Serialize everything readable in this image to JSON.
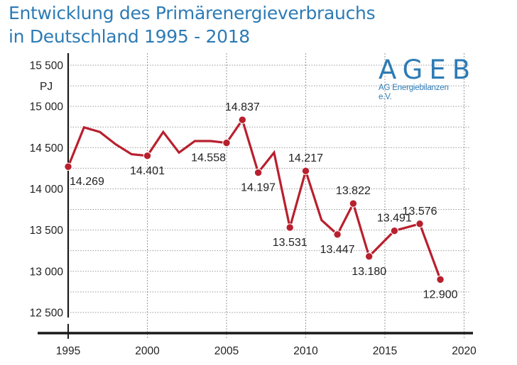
{
  "chart_data": {
    "type": "line",
    "title_line1": "Entwicklung des Primärenergieverbrauchs",
    "title_line2": "in Deutschland 1995 - 2018",
    "ylabel": "PJ",
    "xlabel": "",
    "xlim": [
      1995,
      2021
    ],
    "ylim": [
      12400,
      15600
    ],
    "grid": true,
    "x_ticks": [
      1995,
      2000,
      2005,
      2010,
      2015,
      2020
    ],
    "x_tick_labels": [
      "1995",
      "2000",
      "2005",
      "2010",
      "2015",
      "2020"
    ],
    "y_ticks": [
      12500,
      13000,
      13500,
      14000,
      14500,
      15000,
      15500
    ],
    "y_tick_labels": [
      "12 500",
      "13 000",
      "13 500",
      "14 000",
      "14 500",
      "15 000",
      "15 500"
    ],
    "y_minor_grid": [
      12750,
      13250,
      13750,
      14250,
      14750,
      15250
    ],
    "series": [
      {
        "name": "Primärenergieverbrauch",
        "color": "#b8202e",
        "points": [
          {
            "x": 1995,
            "y": 14269,
            "label": "14.269",
            "marker": true,
            "label_pos": "below-right"
          },
          {
            "x": 1996,
            "y": 14746
          },
          {
            "x": 1997,
            "y": 14690
          },
          {
            "x": 1998,
            "y": 14540
          },
          {
            "x": 1999,
            "y": 14420
          },
          {
            "x": 2000,
            "y": 14401,
            "label": "14.401",
            "marker": true,
            "label_pos": "below"
          },
          {
            "x": 2001,
            "y": 14690
          },
          {
            "x": 2002,
            "y": 14440
          },
          {
            "x": 2003,
            "y": 14580
          },
          {
            "x": 2004,
            "y": 14580
          },
          {
            "x": 2005,
            "y": 14558,
            "label": "14.558",
            "marker": true,
            "label_pos": "below-left"
          },
          {
            "x": 2006,
            "y": 14837,
            "label": "14.837",
            "marker": true,
            "label_pos": "above"
          },
          {
            "x": 2007,
            "y": 14197,
            "label": "14.197",
            "marker": true,
            "label_pos": "below"
          },
          {
            "x": 2008,
            "y": 14440
          },
          {
            "x": 2009,
            "y": 13531,
            "label": "13.531",
            "marker": true,
            "label_pos": "below"
          },
          {
            "x": 2010,
            "y": 14217,
            "label": "14.217",
            "marker": true,
            "label_pos": "above"
          },
          {
            "x": 2011,
            "y": 13620
          },
          {
            "x": 2012,
            "y": 13447,
            "label": "13.447",
            "marker": true,
            "label_pos": "below"
          },
          {
            "x": 2013,
            "y": 13822,
            "label": "13.822",
            "marker": true,
            "label_pos": "above"
          },
          {
            "x": 2014,
            "y": 13180,
            "label": "13.180",
            "marker": true,
            "label_pos": "below"
          },
          {
            "x": 2015.6,
            "y": 13491,
            "label": "13.491",
            "marker": true,
            "label_pos": "above"
          },
          {
            "x": 2017.2,
            "y": 13576,
            "label": "13.576",
            "marker": true,
            "label_pos": "above"
          },
          {
            "x": 2018.5,
            "y": 12900,
            "label": "12.900",
            "marker": true,
            "label_pos": "below"
          }
        ]
      }
    ]
  },
  "logo": {
    "name": "AGEB",
    "subtitle": "AG Energiebilanzen e.V."
  },
  "colors": {
    "title": "#2d7bb5",
    "line": "#b8202e",
    "axis": "#1a1a1a",
    "grid": "#9a9a9a"
  }
}
